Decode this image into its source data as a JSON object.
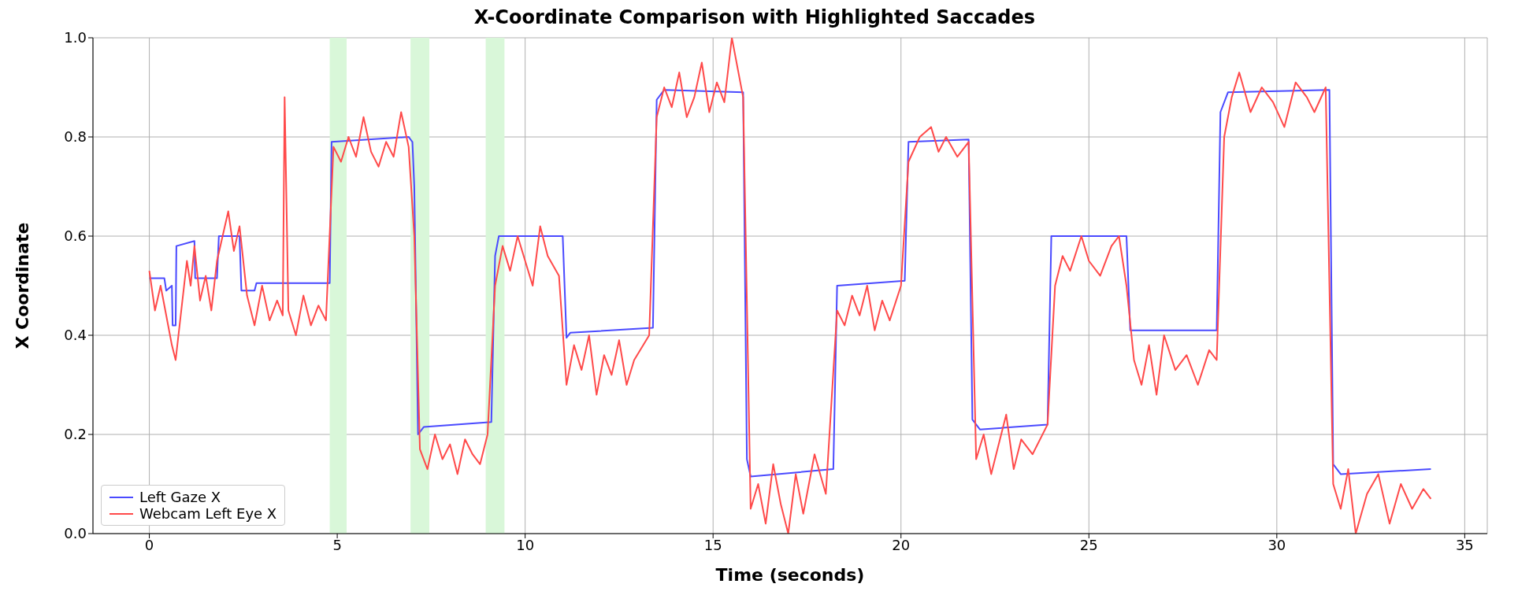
{
  "chart_data": {
    "type": "line",
    "title": "X-Coordinate Comparison with Highlighted Saccades",
    "xlabel": "Time (seconds)",
    "ylabel": "X Coordinate",
    "xlim": [
      -1.5,
      35.6
    ],
    "xticks": [
      0,
      5,
      10,
      15,
      20,
      25,
      30,
      35
    ],
    "ylim": [
      0,
      1
    ],
    "yticks": [
      {
        "value": 0,
        "label": "0.0"
      },
      0.2,
      0.4,
      0.6,
      0.8,
      {
        "value": 1,
        "label": "1.0"
      }
    ],
    "grid": true,
    "legend": "bottom left",
    "bands": [
      {
        "axis": "x",
        "from": 4.8,
        "to": 5.25,
        "color": "#d9f7d9"
      },
      {
        "axis": "x",
        "from": 6.95,
        "to": 7.45,
        "color": "#d9f7d9"
      },
      {
        "axis": "x",
        "from": 8.95,
        "to": 9.45,
        "color": "#d9f7d9"
      }
    ],
    "series": [
      {
        "name": "Left Gaze X",
        "color": "#4a4aff",
        "x": [
          0,
          0.4,
          0.45,
          0.6,
          0.62,
          0.7,
          0.72,
          1.2,
          1.22,
          1.8,
          1.85,
          2.4,
          2.45,
          2.8,
          2.85,
          4.8,
          4.85,
          6.9,
          7.0,
          7.05,
          7.15,
          7.3,
          9.1,
          9.2,
          9.3,
          11.0,
          11.1,
          11.2,
          13.4,
          13.5,
          13.7,
          15.8,
          15.9,
          16.0,
          18.2,
          18.3,
          20.1,
          20.2,
          21.8,
          21.9,
          22.1,
          23.9,
          24.0,
          26.0,
          26.1,
          28.4,
          28.5,
          28.7,
          31.4,
          31.5,
          31.7,
          34.1
        ],
        "values": [
          0.515,
          0.515,
          0.49,
          0.5,
          0.42,
          0.42,
          0.58,
          0.59,
          0.515,
          0.515,
          0.6,
          0.6,
          0.49,
          0.49,
          0.505,
          0.505,
          0.79,
          0.8,
          0.79,
          0.7,
          0.2,
          0.215,
          0.225,
          0.56,
          0.6,
          0.6,
          0.395,
          0.405,
          0.415,
          0.875,
          0.895,
          0.89,
          0.15,
          0.115,
          0.13,
          0.5,
          0.51,
          0.79,
          0.795,
          0.23,
          0.21,
          0.22,
          0.6,
          0.6,
          0.41,
          0.41,
          0.85,
          0.89,
          0.895,
          0.14,
          0.12,
          0.13
        ]
      },
      {
        "name": "Webcam Left Eye X",
        "color": "#ff4a4a",
        "x": [
          0,
          0.15,
          0.3,
          0.45,
          0.6,
          0.7,
          0.85,
          1.0,
          1.1,
          1.2,
          1.35,
          1.5,
          1.65,
          1.8,
          1.95,
          2.1,
          2.25,
          2.4,
          2.6,
          2.8,
          3.0,
          3.2,
          3.4,
          3.55,
          3.6,
          3.7,
          3.9,
          4.1,
          4.3,
          4.5,
          4.7,
          4.9,
          5.1,
          5.3,
          5.5,
          5.7,
          5.9,
          6.1,
          6.3,
          6.5,
          6.7,
          6.9,
          7.05,
          7.2,
          7.4,
          7.6,
          7.8,
          8.0,
          8.2,
          8.4,
          8.6,
          8.8,
          9.0,
          9.2,
          9.4,
          9.6,
          9.8,
          10.0,
          10.2,
          10.4,
          10.6,
          10.9,
          11.1,
          11.3,
          11.5,
          11.7,
          11.9,
          12.1,
          12.3,
          12.5,
          12.7,
          12.9,
          13.3,
          13.5,
          13.7,
          13.9,
          14.1,
          14.3,
          14.5,
          14.7,
          14.9,
          15.1,
          15.3,
          15.5,
          15.8,
          16.0,
          16.2,
          16.4,
          16.6,
          16.8,
          17.0,
          17.2,
          17.4,
          17.7,
          18.0,
          18.3,
          18.5,
          18.7,
          18.9,
          19.1,
          19.3,
          19.5,
          19.7,
          20.0,
          20.2,
          20.5,
          20.8,
          21.0,
          21.2,
          21.5,
          21.8,
          22.0,
          22.2,
          22.4,
          22.6,
          22.8,
          23.0,
          23.2,
          23.5,
          23.9,
          24.1,
          24.3,
          24.5,
          24.8,
          25.0,
          25.3,
          25.6,
          25.8,
          26.0,
          26.2,
          26.4,
          26.6,
          26.8,
          27.0,
          27.3,
          27.6,
          27.9,
          28.2,
          28.4,
          28.6,
          28.8,
          29.0,
          29.3,
          29.6,
          29.9,
          30.2,
          30.5,
          30.8,
          31.0,
          31.3,
          31.5,
          31.7,
          31.9,
          32.1,
          32.4,
          32.7,
          33.0,
          33.3,
          33.6,
          33.9,
          34.1
        ],
        "values": [
          0.53,
          0.45,
          0.5,
          0.44,
          0.38,
          0.35,
          0.45,
          0.55,
          0.5,
          0.58,
          0.47,
          0.52,
          0.45,
          0.55,
          0.6,
          0.65,
          0.57,
          0.62,
          0.48,
          0.42,
          0.5,
          0.43,
          0.47,
          0.44,
          0.88,
          0.45,
          0.4,
          0.48,
          0.42,
          0.46,
          0.43,
          0.78,
          0.75,
          0.8,
          0.76,
          0.84,
          0.77,
          0.74,
          0.79,
          0.76,
          0.85,
          0.78,
          0.6,
          0.17,
          0.13,
          0.2,
          0.15,
          0.18,
          0.12,
          0.19,
          0.16,
          0.14,
          0.2,
          0.5,
          0.58,
          0.53,
          0.6,
          0.55,
          0.5,
          0.62,
          0.56,
          0.52,
          0.3,
          0.38,
          0.33,
          0.4,
          0.28,
          0.36,
          0.32,
          0.39,
          0.3,
          0.35,
          0.4,
          0.84,
          0.9,
          0.86,
          0.93,
          0.84,
          0.88,
          0.95,
          0.85,
          0.91,
          0.87,
          1.0,
          0.88,
          0.05,
          0.1,
          0.02,
          0.14,
          0.06,
          0,
          0.12,
          0.04,
          0.16,
          0.08,
          0.45,
          0.42,
          0.48,
          0.44,
          0.5,
          0.41,
          0.47,
          0.43,
          0.5,
          0.75,
          0.8,
          0.82,
          0.77,
          0.8,
          0.76,
          0.79,
          0.15,
          0.2,
          0.12,
          0.18,
          0.24,
          0.13,
          0.19,
          0.16,
          0.22,
          0.5,
          0.56,
          0.53,
          0.6,
          0.55,
          0.52,
          0.58,
          0.6,
          0.5,
          0.35,
          0.3,
          0.38,
          0.28,
          0.4,
          0.33,
          0.36,
          0.3,
          0.37,
          0.35,
          0.8,
          0.88,
          0.93,
          0.85,
          0.9,
          0.87,
          0.82,
          0.91,
          0.88,
          0.85,
          0.9,
          0.1,
          0.05,
          0.13,
          0,
          0.08,
          0.12,
          0.02,
          0.1,
          0.05,
          0.09,
          0.07
        ]
      }
    ]
  }
}
